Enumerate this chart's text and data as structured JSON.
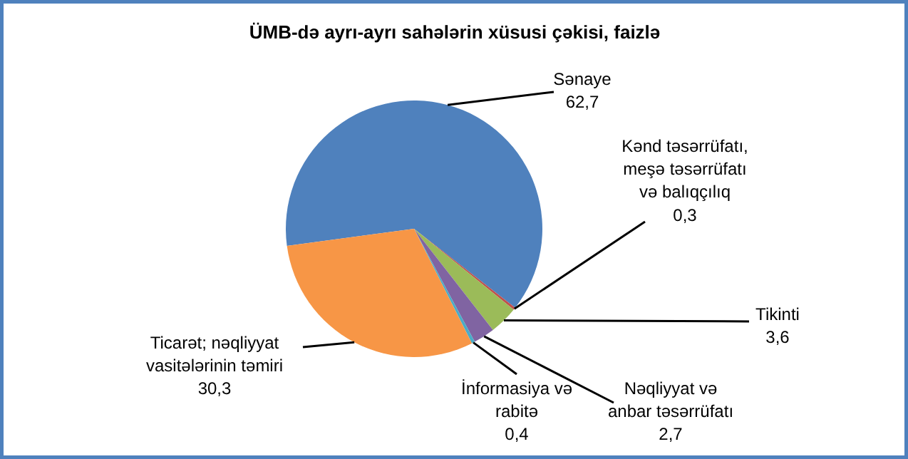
{
  "chart_data": {
    "type": "pie",
    "title": "ÜMB-də ayrı-ayrı sahələrin xüsusi çəkisi, faizlə",
    "categories": [
      "Sənaye",
      "Kənd təsərrüfatı,\nmeşə təsərrüfatı\nvə balıqçılıq",
      "Tikinti",
      "Nəqliyyat və\nanbar təsərrüfatı",
      "İnformasiya və\nrabitə",
      "Ticarət; nəqliyyat\nvasitələrinin təmiri"
    ],
    "values": [
      62.7,
      0.3,
      3.6,
      2.7,
      0.4,
      30.3
    ],
    "colors": [
      "#4f81bd",
      "#c0504d",
      "#9bbb59",
      "#8064a2",
      "#4bacc6",
      "#f79646"
    ],
    "value_labels": [
      "62,7",
      "0,3",
      "3,6",
      "2,7",
      "0,4",
      "30,3"
    ]
  }
}
